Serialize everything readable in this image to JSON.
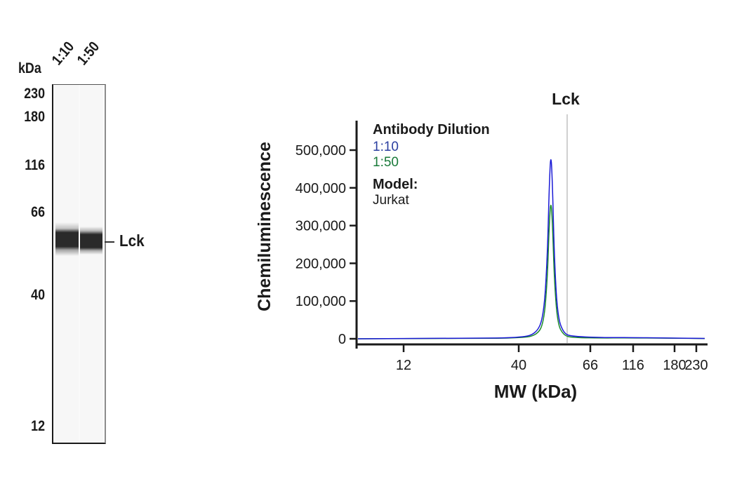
{
  "blot": {
    "unit_label": "kDa",
    "lanes": [
      {
        "label": "1:10"
      },
      {
        "label": "1:50"
      }
    ],
    "mw_markers": [
      {
        "label": "230",
        "y": 135
      },
      {
        "label": "180",
        "y": 168
      },
      {
        "label": "116",
        "y": 237
      },
      {
        "label": "66",
        "y": 304
      },
      {
        "label": "40",
        "y": 422
      },
      {
        "label": "12",
        "y": 609
      }
    ],
    "band_label": "Lck"
  },
  "chart_data": {
    "type": "line",
    "title": "Lck",
    "xlabel": "MW (kDa)",
    "ylabel": "Chemiluminescence",
    "x_scale": "log",
    "x_ticks": [
      "12",
      "40",
      "66",
      "116",
      "180",
      "230"
    ],
    "y_ticks": [
      "0",
      "100,000",
      "200,000",
      "300,000",
      "400,000",
      "500,000"
    ],
    "ylim": [
      0,
      550000
    ],
    "grid": false,
    "legend": {
      "position": "upper-left",
      "title": "Antibody Dilution",
      "entries": [
        {
          "name": "1:10",
          "color": "#2b3fa0"
        },
        {
          "name": "1:50",
          "color": "#1a7a3a"
        }
      ],
      "model_title": "Model:",
      "model_value": "Jurkat"
    },
    "annotation": {
      "label": "Lck",
      "x_kda": 56
    },
    "series": [
      {
        "name": "1:10",
        "color": "#1a1ad6",
        "x": [
          8,
          25,
          40,
          48,
          52,
          54,
          55,
          56,
          57,
          58,
          60,
          64,
          70,
          100,
          116,
          200,
          250
        ],
        "y": [
          0,
          1000,
          3000,
          12000,
          60000,
          220000,
          400000,
          500000,
          400000,
          220000,
          60000,
          14000,
          6000,
          3000,
          3500,
          2000,
          1000
        ]
      },
      {
        "name": "1:50",
        "color": "#1a8a2a",
        "x": [
          8,
          25,
          40,
          48,
          52,
          54,
          55,
          56,
          57,
          58,
          60,
          64,
          70,
          100,
          116,
          200,
          250
        ],
        "y": [
          0,
          800,
          2000,
          8000,
          40000,
          160000,
          300000,
          372000,
          300000,
          160000,
          40000,
          9000,
          3000,
          2000,
          2500,
          1500,
          800
        ]
      }
    ]
  },
  "colors": {
    "text": "#1a1a1a",
    "series_1_10": "#1a1ad6",
    "series_1_50": "#1a8a2a",
    "legend_1_10": "#2b3fa0",
    "legend_1_50": "#1a7a3a",
    "peak_line": "#b0b0b0"
  }
}
